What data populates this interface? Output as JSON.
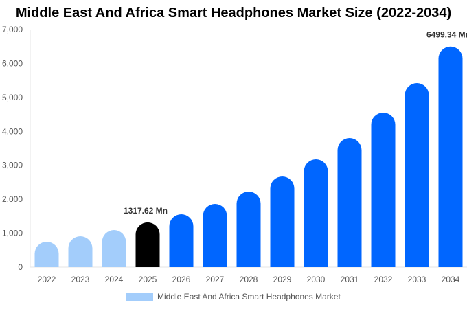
{
  "chart_data": {
    "type": "bar",
    "title": "Middle East And Africa Smart Headphones Market Size (2022-2034)",
    "categories": [
      "2022",
      "2023",
      "2024",
      "2025",
      "2026",
      "2027",
      "2028",
      "2029",
      "2030",
      "2031",
      "2032",
      "2033",
      "2034"
    ],
    "series": [
      {
        "name": "Middle East And Africa Smart Headphones Market",
        "values": [
          748,
          910,
          1092,
          1317.62,
          1558,
          1861,
          2225,
          2670,
          3176,
          3803,
          4552,
          5422,
          6499.34
        ]
      }
    ],
    "data_labels": {
      "3": "1317.62 Mn",
      "12": "6499.34 Mn"
    },
    "ylim": [
      0,
      7000
    ],
    "yticks": [
      0,
      1000,
      2000,
      3000,
      4000,
      5000,
      6000,
      7000
    ],
    "ytick_labels": [
      "0",
      "1,000",
      "2,000",
      "3,000",
      "4,000",
      "5,000",
      "6,000",
      "7,000"
    ],
    "grid": false,
    "legend_position": "bottom",
    "colors": {
      "historical": "#a3cdfb",
      "base_year": "#000000",
      "forecast": "#0066ff"
    }
  }
}
